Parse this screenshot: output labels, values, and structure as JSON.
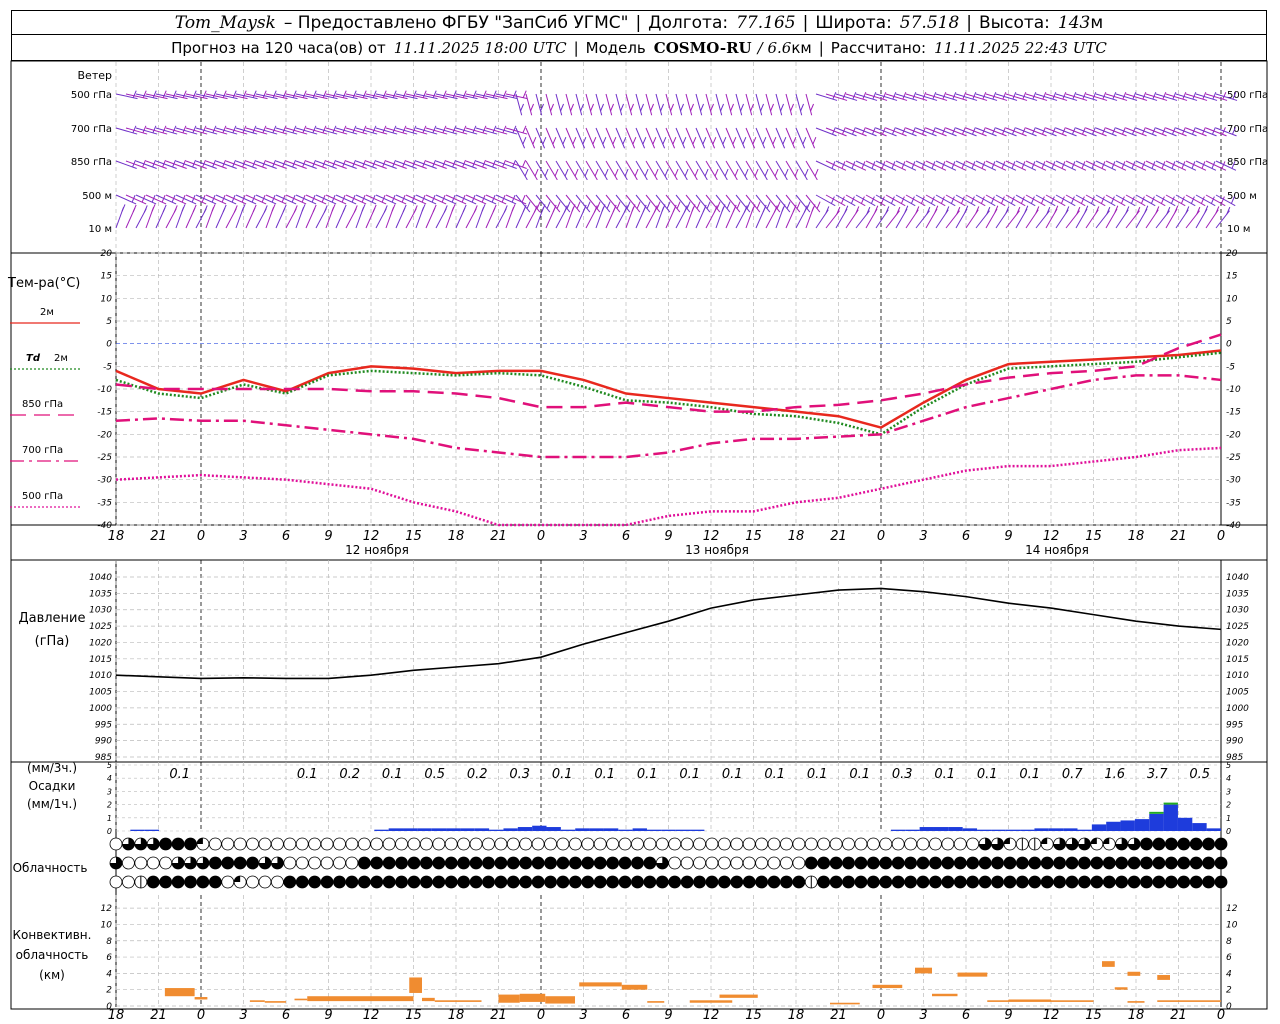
{
  "header": {
    "station": "Tom_Maysk",
    "provided": "– Предоставлено ФГБУ \"ЗапСиб УГМС\"",
    "lon_label": "Долгота:",
    "lon": "77.165",
    "lat_label": "Широта:",
    "lat": "57.518",
    "alt_label": "Высота:",
    "alt": "143",
    "alt_unit": "м",
    "forecast_label": "Прогноз на 120 часа(ов) от",
    "forecast_from": "11.11.2025 18:00 UTC",
    "model_label": "Модель",
    "model": "COSMO-RU",
    "model_res": "/ 6.6",
    "model_res_unit": "км",
    "computed_label": "Рассчитано:",
    "computed": "11.11.2025 22:43 UTC"
  },
  "chart_data": {
    "time_ticks": [
      "18",
      "21",
      "0",
      "3",
      "6",
      "9",
      "12",
      "15",
      "18",
      "21",
      "0",
      "3",
      "6",
      "9",
      "12",
      "15",
      "18",
      "21",
      "0",
      "3",
      "6",
      "9",
      "12",
      "15",
      "18",
      "21",
      "0"
    ],
    "day_labels": [
      {
        "tick_index": 6,
        "text": "12 ноября"
      },
      {
        "tick_index": 14,
        "text": "13 ноября"
      },
      {
        "tick_index": 22,
        "text": "14 ноября"
      }
    ],
    "wind": {
      "title": "Ветер",
      "levels": [
        "500 гПа",
        "700 гПа",
        "850 гПа",
        "500 м",
        "10 м"
      ],
      "colors": [
        "#7030c8",
        "#a020b8"
      ]
    },
    "temperature": {
      "type": "line",
      "title": "Тем-ра(°C)",
      "ylim": [
        -40,
        20
      ],
      "yticks": [
        20,
        15,
        10,
        5,
        0,
        -5,
        -10,
        -15,
        -20,
        -25,
        -30,
        -35,
        -40
      ],
      "x": [
        0,
        1,
        2,
        3,
        4,
        5,
        6,
        7,
        8,
        9,
        10,
        11,
        12,
        13,
        14,
        15,
        16,
        17,
        18,
        19,
        20,
        21,
        22,
        23,
        24,
        25,
        26
      ],
      "series": [
        {
          "name": "2м",
          "color": "#e8281e",
          "style": "solid",
          "values": [
            -6,
            -10,
            -11,
            -8,
            -10.5,
            -6.5,
            -5,
            -5.5,
            -6.5,
            -6,
            -6,
            -8,
            -11,
            -12,
            -13,
            -14,
            -15,
            -16,
            -18.5,
            -13,
            -8,
            -4.5,
            -4,
            -3.5,
            -3,
            -2.5,
            -1.5
          ]
        },
        {
          "name": "Td 2м",
          "label_prefix": "Td",
          "label_level": "2м",
          "color": "#208a20",
          "style": "dotted",
          "values": [
            -8,
            -11,
            -12,
            -9,
            -11,
            -7,
            -6,
            -6.5,
            -7,
            -6.5,
            -7,
            -9.5,
            -12.5,
            -13,
            -14,
            -15.5,
            -16,
            -17.5,
            -20,
            -14,
            -9,
            -5.5,
            -5,
            -4.5,
            -4,
            -3,
            -2
          ]
        },
        {
          "name": "850 гПа",
          "color": "#e0107a",
          "style": "dashed",
          "values": [
            -9,
            -10,
            -10,
            -10,
            -10,
            -10,
            -10.5,
            -10.5,
            -11,
            -12,
            -14,
            -14,
            -13,
            -14,
            -15,
            -15,
            -14,
            -13.5,
            -12.5,
            -11,
            -9,
            -7.5,
            -6.5,
            -6,
            -5,
            -1,
            2
          ]
        },
        {
          "name": "700 гПа",
          "color": "#e0107a",
          "style": "dashdot",
          "values": [
            -17,
            -16.5,
            -17,
            -17,
            -18,
            -19,
            -20,
            -21,
            -23,
            -24,
            -25,
            -25,
            -25,
            -24,
            -22,
            -21,
            -21,
            -20.5,
            -20,
            -17,
            -14,
            -12,
            -10,
            -8,
            -7,
            -7,
            -8
          ]
        },
        {
          "name": "500 гПа",
          "color": "#e0109a",
          "style": "dotted",
          "values": [
            -30,
            -29.5,
            -29,
            -29.5,
            -30,
            -31,
            -32,
            -35,
            -37,
            -40,
            -43,
            -42,
            -40,
            -38,
            -37,
            -37,
            -35,
            -34,
            -32,
            -30,
            -28,
            -27,
            -27,
            -26,
            -25,
            -23.5,
            -23
          ]
        }
      ]
    },
    "pressure": {
      "type": "line",
      "title": "Давление",
      "unit": "(гПа)",
      "ylim": [
        985,
        1040
      ],
      "yticks": [
        1040,
        1035,
        1030,
        1025,
        1020,
        1015,
        1010,
        1005,
        1000,
        995,
        990,
        985
      ],
      "x": [
        0,
        1,
        2,
        3,
        4,
        5,
        6,
        7,
        8,
        9,
        10,
        11,
        12,
        13,
        14,
        15,
        16,
        17,
        18,
        19,
        20,
        21,
        22,
        23,
        24,
        25,
        26
      ],
      "values": [
        1010,
        1009.5,
        1009,
        1009.2,
        1009,
        1009,
        1010,
        1011.5,
        1012.5,
        1013.5,
        1015.5,
        1019.5,
        1023,
        1026.5,
        1030.5,
        1033,
        1034.5,
        1036,
        1036.5,
        1035.5,
        1034,
        1032,
        1030.5,
        1028.5,
        1026.5,
        1025,
        1024
      ],
      "color": "#000000"
    },
    "precipitation": {
      "type": "bar",
      "title": "Осадки",
      "unit_3h": "(мм/3ч.)",
      "unit_1h": "(мм/1ч.)",
      "ylim": [
        0,
        5
      ],
      "yticks": [
        5,
        4,
        3,
        2,
        1,
        0
      ],
      "labels_3h": [
        "0.1",
        "",
        "0.1",
        "0.2",
        "0.1",
        "0.5",
        "0.2",
        "0.3",
        "0.1",
        "0.1",
        "0.1",
        "0.1",
        "0.1",
        "0.1",
        "0.1",
        "0.1",
        "0.3",
        "0.1",
        "0.1",
        "0.1",
        "0.7",
        "1.6",
        "3.7",
        "0.5"
      ],
      "label_positions": [
        1.5,
        3.5,
        4.5,
        5.5,
        6.5,
        7.5,
        8.5,
        9.5,
        10.5,
        11.5,
        12.5,
        13.5,
        14.5,
        15.5,
        16.5,
        17.5,
        18.5,
        19.5,
        20.5,
        21.5,
        22.5,
        23.5,
        24.5,
        25.5
      ],
      "hourly_values": [
        0,
        0.1,
        0.1,
        0,
        0,
        0,
        0,
        0,
        0,
        0,
        0,
        0,
        0,
        0,
        0,
        0,
        0,
        0,
        0.1,
        0.2,
        0.2,
        0.2,
        0.2,
        0.2,
        0.2,
        0.2,
        0.1,
        0.2,
        0.3,
        0.4,
        0.3,
        0.1,
        0.2,
        0.2,
        0.2,
        0.1,
        0.2,
        0.1,
        0.1,
        0.1,
        0.1,
        0,
        0,
        0,
        0,
        0,
        0,
        0,
        0,
        0,
        0,
        0,
        0,
        0,
        0.1,
        0.1,
        0.3,
        0.3,
        0.3,
        0.2,
        0.1,
        0.1,
        0.1,
        0.1,
        0.2,
        0.2,
        0.2,
        0.1,
        0.5,
        0.7,
        0.8,
        0.9,
        1.3,
        2,
        1,
        0.6,
        0.2
      ],
      "colors": {
        "rain": "#1e3cdc",
        "snow_mix": "#22aa22"
      }
    },
    "cloudiness": {
      "title": "Облачность",
      "rows": [
        [
          0,
          3,
          3,
          3,
          4,
          4,
          4,
          2,
          0,
          0,
          0,
          0,
          0,
          0,
          0,
          0,
          0,
          0,
          0,
          0,
          0,
          0,
          0,
          0,
          0,
          0,
          0,
          0,
          0,
          0,
          0,
          0,
          0,
          0,
          0,
          0,
          0,
          0,
          0,
          0,
          0,
          0,
          0,
          0,
          0,
          0,
          0,
          0,
          0,
          0,
          0,
          0,
          0,
          0,
          0,
          0,
          0,
          0,
          0,
          0,
          0,
          0,
          0,
          0,
          0,
          0,
          0,
          0,
          0,
          0,
          3,
          3,
          2,
          1,
          1,
          2,
          3,
          3,
          3,
          2,
          2,
          3,
          3,
          4,
          4,
          4,
          4,
          4,
          4,
          4
        ],
        [
          3,
          0,
          0,
          0,
          0,
          3,
          3,
          3,
          4,
          4,
          4,
          4,
          3,
          3,
          0,
          0,
          0,
          0,
          0,
          0,
          4,
          4,
          4,
          4,
          4,
          4,
          4,
          4,
          4,
          4,
          4,
          4,
          4,
          4,
          4,
          4,
          4,
          4,
          4,
          4,
          4,
          4,
          4,
          4,
          3,
          0,
          0,
          0,
          0,
          0,
          0,
          0,
          0,
          0,
          0,
          0,
          4,
          4,
          4,
          4,
          4,
          4,
          4,
          4,
          4,
          4,
          4,
          4,
          4,
          4,
          4,
          4,
          4,
          4,
          4,
          4,
          4,
          4,
          4,
          4,
          4,
          4,
          4,
          4,
          4,
          4,
          4,
          4,
          4,
          4
        ],
        [
          0,
          0,
          1,
          4,
          4,
          4,
          4,
          4,
          4,
          0,
          2,
          0,
          0,
          0,
          4,
          4,
          4,
          4,
          4,
          4,
          4,
          4,
          4,
          4,
          4,
          4,
          4,
          4,
          4,
          4,
          4,
          4,
          4,
          4,
          4,
          4,
          4,
          4,
          4,
          4,
          4,
          4,
          4,
          4,
          4,
          4,
          4,
          4,
          4,
          4,
          4,
          4,
          4,
          4,
          4,
          4,
          1,
          4,
          4,
          4,
          4,
          4,
          4,
          4,
          4,
          4,
          4,
          4,
          4,
          4,
          4,
          4,
          4,
          4,
          4,
          4,
          4,
          4,
          4,
          4,
          4,
          4,
          4,
          4,
          4,
          4,
          4,
          4,
          4,
          4
        ]
      ]
    },
    "convective": {
      "type": "bar",
      "title_line1": "Конвективн.",
      "title_line2": "облачность",
      "unit": "(км)",
      "ylim": [
        0,
        13
      ],
      "yticks": [
        12,
        10,
        8,
        6,
        4,
        2,
        0
      ],
      "color": "#f08c30",
      "blocks": [
        {
          "x0": 1.15,
          "x1": 1.85,
          "lo": 1.2,
          "hi": 2.2
        },
        {
          "x0": 1.85,
          "x1": 2.15,
          "lo": 0.8,
          "hi": 1.1
        },
        {
          "x0": 3.15,
          "x1": 3.5,
          "lo": 0.5,
          "hi": 0.7
        },
        {
          "x0": 3.5,
          "x1": 4,
          "lo": 0.4,
          "hi": 0.6
        },
        {
          "x0": 4.2,
          "x1": 4.5,
          "lo": 0.7,
          "hi": 0.9
        },
        {
          "x0": 4.5,
          "x1": 6,
          "lo": 0.6,
          "hi": 1.2
        },
        {
          "x0": 6,
          "x1": 7,
          "lo": 0.6,
          "hi": 1.2
        },
        {
          "x0": 6.9,
          "x1": 7.2,
          "lo": 1.6,
          "hi": 3.5
        },
        {
          "x0": 7.2,
          "x1": 7.5,
          "lo": 0.6,
          "hi": 1.0
        },
        {
          "x0": 7.5,
          "x1": 8.6,
          "lo": 0.5,
          "hi": 0.7
        },
        {
          "x0": 9,
          "x1": 9.5,
          "lo": 0.4,
          "hi": 1.4
        },
        {
          "x0": 9.5,
          "x1": 10.1,
          "lo": 0.5,
          "hi": 1.5
        },
        {
          "x0": 10.1,
          "x1": 10.8,
          "lo": 0.3,
          "hi": 1.2
        },
        {
          "x0": 10.9,
          "x1": 11.9,
          "lo": 2.4,
          "hi": 2.9
        },
        {
          "x0": 11.9,
          "x1": 12.5,
          "lo": 2.0,
          "hi": 2.6
        },
        {
          "x0": 12.5,
          "x1": 12.9,
          "lo": 0.4,
          "hi": 0.6
        },
        {
          "x0": 13.5,
          "x1": 14.5,
          "lo": 0.4,
          "hi": 0.7
        },
        {
          "x0": 14.2,
          "x1": 15.1,
          "lo": 1.0,
          "hi": 1.4
        },
        {
          "x0": 16.8,
          "x1": 17.5,
          "lo": 0.2,
          "hi": 0.4
        },
        {
          "x0": 17.8,
          "x1": 18.5,
          "lo": 2.2,
          "hi": 2.6
        },
        {
          "x0": 18.8,
          "x1": 19.2,
          "lo": 4.0,
          "hi": 4.7
        },
        {
          "x0": 19.2,
          "x1": 19.8,
          "lo": 1.2,
          "hi": 1.5
        },
        {
          "x0": 19.8,
          "x1": 20.5,
          "lo": 3.6,
          "hi": 4.1
        },
        {
          "x0": 20.5,
          "x1": 21,
          "lo": 0.5,
          "hi": 0.7
        },
        {
          "x0": 21,
          "x1": 22,
          "lo": 0.5,
          "hi": 0.8
        },
        {
          "x0": 22,
          "x1": 23,
          "lo": 0.5,
          "hi": 0.7
        },
        {
          "x0": 23.2,
          "x1": 23.5,
          "lo": 4.8,
          "hi": 5.5
        },
        {
          "x0": 23.5,
          "x1": 23.8,
          "lo": 2.0,
          "hi": 2.3
        },
        {
          "x0": 23.8,
          "x1": 24.1,
          "lo": 3.7,
          "hi": 4.2
        },
        {
          "x0": 23.8,
          "x1": 24.2,
          "lo": 0.4,
          "hi": 0.6
        },
        {
          "x0": 24.5,
          "x1": 24.8,
          "lo": 3.2,
          "hi": 3.8
        },
        {
          "x0": 24.5,
          "x1": 26,
          "lo": 0.5,
          "hi": 0.7
        }
      ]
    }
  }
}
